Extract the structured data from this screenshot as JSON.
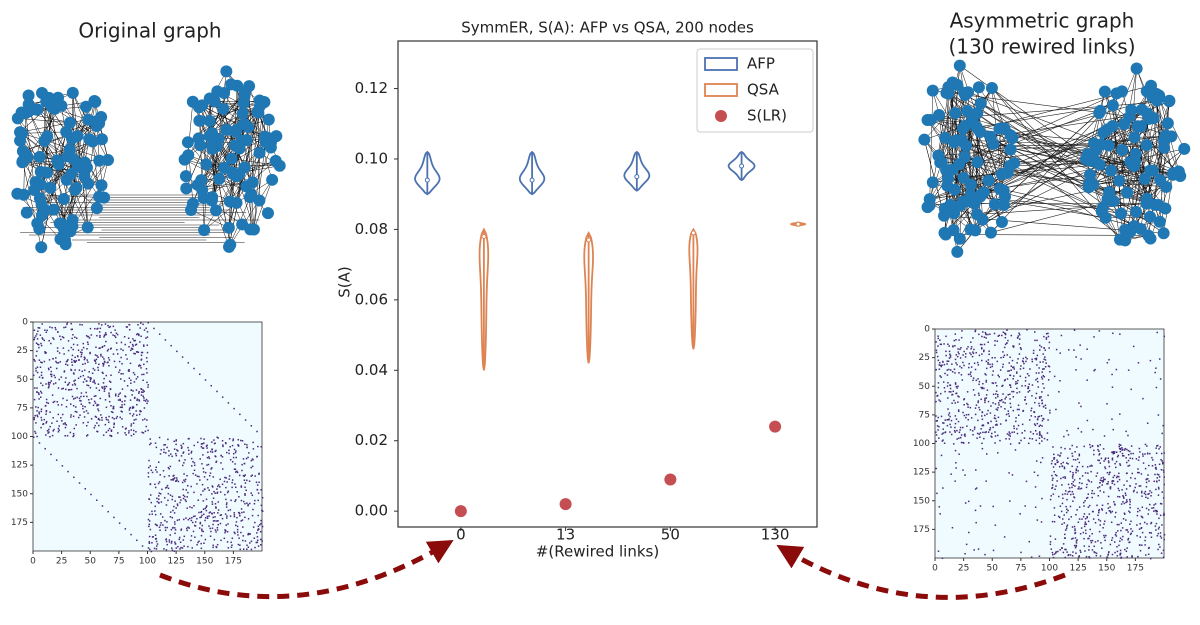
{
  "chart_data": {
    "type": "violin",
    "title": "SymmER, S(A): AFP vs QSA, 200 nodes",
    "categories": [
      "0",
      "13",
      "50",
      "130"
    ],
    "x_label": "#(Rewired links)",
    "y_label": "S(A)",
    "ylim": [
      -0.0045,
      0.1335
    ],
    "yticks": [
      {
        "value": 0,
        "label": "0.00"
      },
      {
        "value": 0.02,
        "label": "0.02"
      },
      {
        "value": 0.04,
        "label": "0.04"
      },
      {
        "value": 0.06,
        "label": "0.06"
      },
      {
        "value": 0.08,
        "label": "0.08"
      },
      {
        "value": 0.1,
        "label": "0.10"
      },
      {
        "value": 0.12,
        "label": "0.12"
      }
    ],
    "series": [
      {
        "name": "AFP",
        "color": "#4c72b0",
        "min": [
          0.09,
          0.09,
          0.091,
          0.094
        ],
        "max": [
          0.102,
          0.102,
          0.102,
          0.102
        ],
        "median": [
          0.094,
          0.094,
          0.095,
          0.098
        ]
      },
      {
        "name": "QSA",
        "color": "#dd8452",
        "min": [
          0.04,
          0.042,
          0.046,
          0.081
        ],
        "max": [
          0.08,
          0.079,
          0.08,
          0.082
        ],
        "median": [
          0.078,
          0.077,
          0.079,
          0.0815
        ]
      },
      {
        "name": "S(LR)",
        "color": "#c44e52",
        "values": [
          0,
          0.002,
          0.009,
          0.024
        ]
      }
    ],
    "legend": "upper right"
  },
  "panels": [
    {
      "title_lines": [
        "Original graph"
      ]
    },
    {
      "title_lines": [
        "Asymmetric graph",
        "(130 rewired links)"
      ]
    }
  ],
  "matrix": {
    "xlim": [
      0,
      200
    ],
    "ylim": [
      0,
      200
    ],
    "xticks": [
      0,
      25,
      50,
      75,
      100,
      125,
      150,
      175
    ],
    "yticks": [
      0,
      25,
      50,
      75,
      100,
      125,
      150,
      175
    ]
  }
}
